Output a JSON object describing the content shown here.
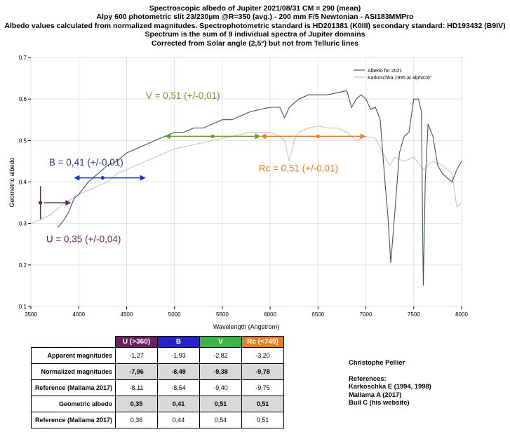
{
  "title_lines": [
    "Spectroscopic albedo of Jupiter 2021/08/31 CM = 290 (mean)",
    "Alpy 600 photometric slit 23/230µm @R=350 (avg.) - 200 mm F/5 Newtonian - ASI183MMPro",
    "Albedo values calculated from normalized magnitudes. Spectrophotometric standard is HD201381 (K0III) secondary standard: HD193432 (B9IV)",
    "Spectrum is the sum of 9 individual spectra of Jupiter domains",
    "Corrected from Solar angle (2,5°) but not from Telluric lines"
  ],
  "chart_data": {
    "type": "line",
    "xlabel": "Wavelength (Angstrom)",
    "ylabel": "Geometric albedo",
    "xlim": [
      3500,
      8000
    ],
    "ylim": [
      0.1,
      0.7
    ],
    "x_ticks": [
      "3500",
      "4000",
      "4500",
      "5000",
      "5500",
      "6000",
      "6500",
      "7000",
      "7500",
      "8000"
    ],
    "y_ticks": [
      "0.1",
      "0.2",
      "0.3",
      "0.4",
      "0.5",
      "0.6",
      "0.7"
    ],
    "grid": true,
    "legend_position": "top-right",
    "series": [
      {
        "name": "Albedo for 2021",
        "color": "#3f5359",
        "x": [
          3780,
          3850,
          3900,
          3950,
          4000,
          4100,
          4200,
          4300,
          4400,
          4500,
          4600,
          4700,
          4800,
          4900,
          5000,
          5100,
          5200,
          5300,
          5400,
          5500,
          5600,
          5700,
          5800,
          5900,
          6000,
          6100,
          6150,
          6200,
          6250,
          6300,
          6400,
          6500,
          6600,
          6700,
          6800,
          6850,
          6900,
          6950,
          7000,
          7050,
          7100,
          7150,
          7200,
          7230,
          7260,
          7300,
          7350,
          7400,
          7450,
          7500,
          7550,
          7580,
          7600,
          7620,
          7650,
          7700,
          7750,
          7800,
          7850,
          7900,
          7950,
          8000
        ],
        "y": [
          0.29,
          0.31,
          0.33,
          0.36,
          0.37,
          0.4,
          0.42,
          0.44,
          0.45,
          0.47,
          0.48,
          0.49,
          0.5,
          0.51,
          0.52,
          0.52,
          0.53,
          0.53,
          0.54,
          0.55,
          0.55,
          0.56,
          0.57,
          0.575,
          0.58,
          0.58,
          0.555,
          0.58,
          0.59,
          0.6,
          0.61,
          0.61,
          0.61,
          0.615,
          0.62,
          0.58,
          0.6,
          0.61,
          0.6,
          0.575,
          0.58,
          0.55,
          0.4,
          0.32,
          0.205,
          0.32,
          0.47,
          0.51,
          0.52,
          0.6,
          0.6,
          0.57,
          0.15,
          0.4,
          0.54,
          0.51,
          0.44,
          0.42,
          0.41,
          0.4,
          0.43,
          0.45
        ]
      },
      {
        "name": "Karkoschka 1995 at alpha=6°",
        "color": "#c0c0c0",
        "x": [
          3500,
          3600,
          3700,
          3800,
          3900,
          4000,
          4100,
          4200,
          4300,
          4400,
          4500,
          4600,
          4700,
          4800,
          4900,
          5000,
          5200,
          5400,
          5600,
          5800,
          5900,
          6000,
          6100,
          6150,
          6200,
          6250,
          6300,
          6400,
          6500,
          6600,
          6700,
          6800,
          6900,
          7000,
          7100,
          7200,
          7250,
          7300,
          7400,
          7500,
          7600,
          7700,
          7800,
          7900,
          7950,
          8000
        ],
        "y": [
          0.3,
          0.31,
          0.32,
          0.34,
          0.355,
          0.37,
          0.38,
          0.39,
          0.4,
          0.42,
          0.43,
          0.44,
          0.45,
          0.46,
          0.47,
          0.48,
          0.49,
          0.5,
          0.51,
          0.52,
          0.52,
          0.52,
          0.51,
          0.5,
          0.45,
          0.5,
          0.52,
          0.53,
          0.535,
          0.53,
          0.53,
          0.52,
          0.5,
          0.51,
          0.505,
          0.46,
          0.44,
          0.46,
          0.45,
          0.46,
          0.43,
          0.45,
          0.44,
          0.42,
          0.34,
          0.35
        ]
      }
    ],
    "annotations": [
      {
        "text": "V = 0,51 (+/-0,01)",
        "color": "#6c9a2c",
        "center": 5400,
        "from": 4900,
        "to": 5900,
        "value": 0.51,
        "label_x": 4700,
        "label_y": 0.6,
        "label_side": "above"
      },
      {
        "text": "B = 0,41 (+/-0,01)",
        "color": "#2532b3",
        "center": 4250,
        "from": 3950,
        "to": 4700,
        "value": 0.41,
        "label_x": 3690,
        "label_y": 0.44,
        "label_side": "above"
      },
      {
        "text": "Rc = 0,51 (+/-0,01)",
        "color": "#e67e22",
        "center": 6500,
        "from": 5900,
        "to": 7000,
        "value": 0.51,
        "label_x": 5880,
        "label_y": 0.425,
        "label_side": "below"
      },
      {
        "text": "U = 0,35 (+/-0,04)",
        "color": "#6b1f5e",
        "center": 3600,
        "from": 3600,
        "to": 3920,
        "value": 0.35,
        "err_low": 0.31,
        "err_high": 0.39,
        "label_x": 3660,
        "label_y": 0.255,
        "label_side": "below"
      }
    ]
  },
  "table": {
    "headers": [
      {
        "label": "U (>360)",
        "color": "#6b1f5e"
      },
      {
        "label": "B",
        "color": "#2424c8"
      },
      {
        "label": "V",
        "color": "#39b54a"
      },
      {
        "label": "Rc (<740)",
        "color": "#e67e22"
      }
    ],
    "rows": [
      {
        "label": "Apparent magnitudes",
        "values": [
          "-1,27",
          "-1,93",
          "-2,82",
          "-3,20"
        ],
        "shaded": false
      },
      {
        "label": "Normalized magnitudes",
        "values": [
          "-7,96",
          "-8,49",
          "-9,38",
          "-9,78"
        ],
        "shaded": true
      },
      {
        "label": "Reference (Mallama 2017)",
        "values": [
          "-8,11",
          "-8,54",
          "-9,40",
          "-9,75"
        ],
        "shaded": false
      },
      {
        "label": "Geometric albedo",
        "values": [
          "0,35",
          "0,41",
          "0,51",
          "0,51"
        ],
        "shaded": true
      },
      {
        "label": "Reference (Mallama 2017)",
        "values": [
          "0,36",
          "0,44",
          "0,54",
          "0,51"
        ],
        "shaded": false
      }
    ]
  },
  "credits": {
    "author": "Christophe Pellier",
    "references_title": "References:",
    "references": [
      "Karkoschka E (1994, 1998)",
      "Mallama A (2017)",
      "Buil C (his website)"
    ]
  }
}
